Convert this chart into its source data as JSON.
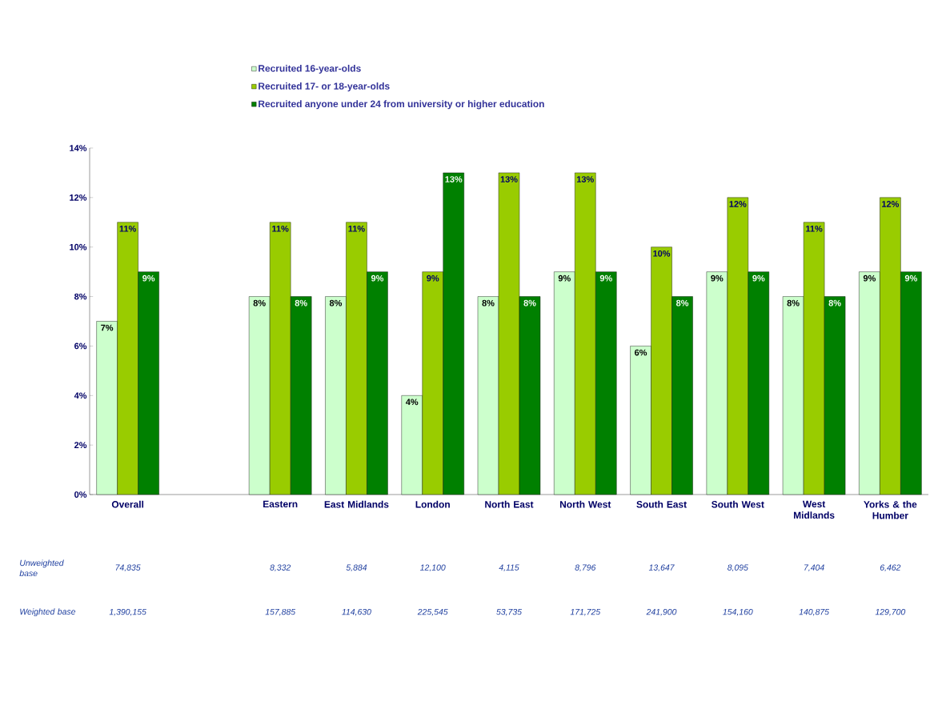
{
  "chart_data": {
    "type": "bar",
    "categories": [
      "Overall",
      null,
      "Eastern",
      "East Midlands",
      "London",
      "North East",
      "North West",
      "South East",
      "South West",
      "West Midlands",
      "Yorks & the Humber"
    ],
    "series": [
      {
        "name": "Recruited 16-year-olds",
        "color": "#ccffcc",
        "values": [
          7,
          null,
          8,
          8,
          4,
          8,
          9,
          6,
          9,
          8,
          9
        ],
        "value_labels": [
          "7%",
          null,
          "8%",
          "8%",
          "4%",
          "8%",
          "9%",
          "6%",
          "9%",
          "8%",
          "9%"
        ]
      },
      {
        "name": "Recruited 17- or 18-year-olds",
        "color": "#99cc00",
        "values": [
          11,
          null,
          11,
          11,
          9,
          13,
          13,
          10,
          12,
          11,
          12
        ],
        "value_labels": [
          "11%",
          null,
          "11%",
          "11%",
          "9%",
          "13%",
          "13%",
          "10%",
          "12%",
          "11%",
          "12%"
        ]
      },
      {
        "name": "Recruited anyone under 24 from university or higher education",
        "color": "#008000",
        "values": [
          9,
          null,
          8,
          9,
          13,
          8,
          9,
          8,
          9,
          8,
          9
        ],
        "value_labels": [
          "9%",
          null,
          "8%",
          "9%",
          "13%",
          "8%",
          "9%",
          "8%",
          "9%",
          "8%",
          "9%"
        ]
      }
    ],
    "ylim": [
      0,
      14
    ],
    "yticks": [
      {
        "value": 0,
        "label": "0%"
      },
      {
        "value": 2,
        "label": "2%"
      },
      {
        "value": 4,
        "label": "4%"
      },
      {
        "value": 6,
        "label": "6%"
      },
      {
        "value": 8,
        "label": "8%"
      },
      {
        "value": 10,
        "label": "10%"
      },
      {
        "value": 12,
        "label": "12%"
      },
      {
        "value": 14,
        "label": "14%"
      }
    ],
    "legend": "top",
    "annotations": [
      "Unweighted base",
      "74,835",
      "8,332",
      "5,884",
      "12,100",
      "4,115",
      "8,796",
      "13,647",
      "8,095",
      "7,404",
      "6,462",
      "Weighted base",
      "1,390,155",
      "157,885",
      "114,630",
      "225,545",
      "53,735",
      "171,725",
      "241,900",
      "154,160",
      "140,875",
      "129,700"
    ]
  }
}
